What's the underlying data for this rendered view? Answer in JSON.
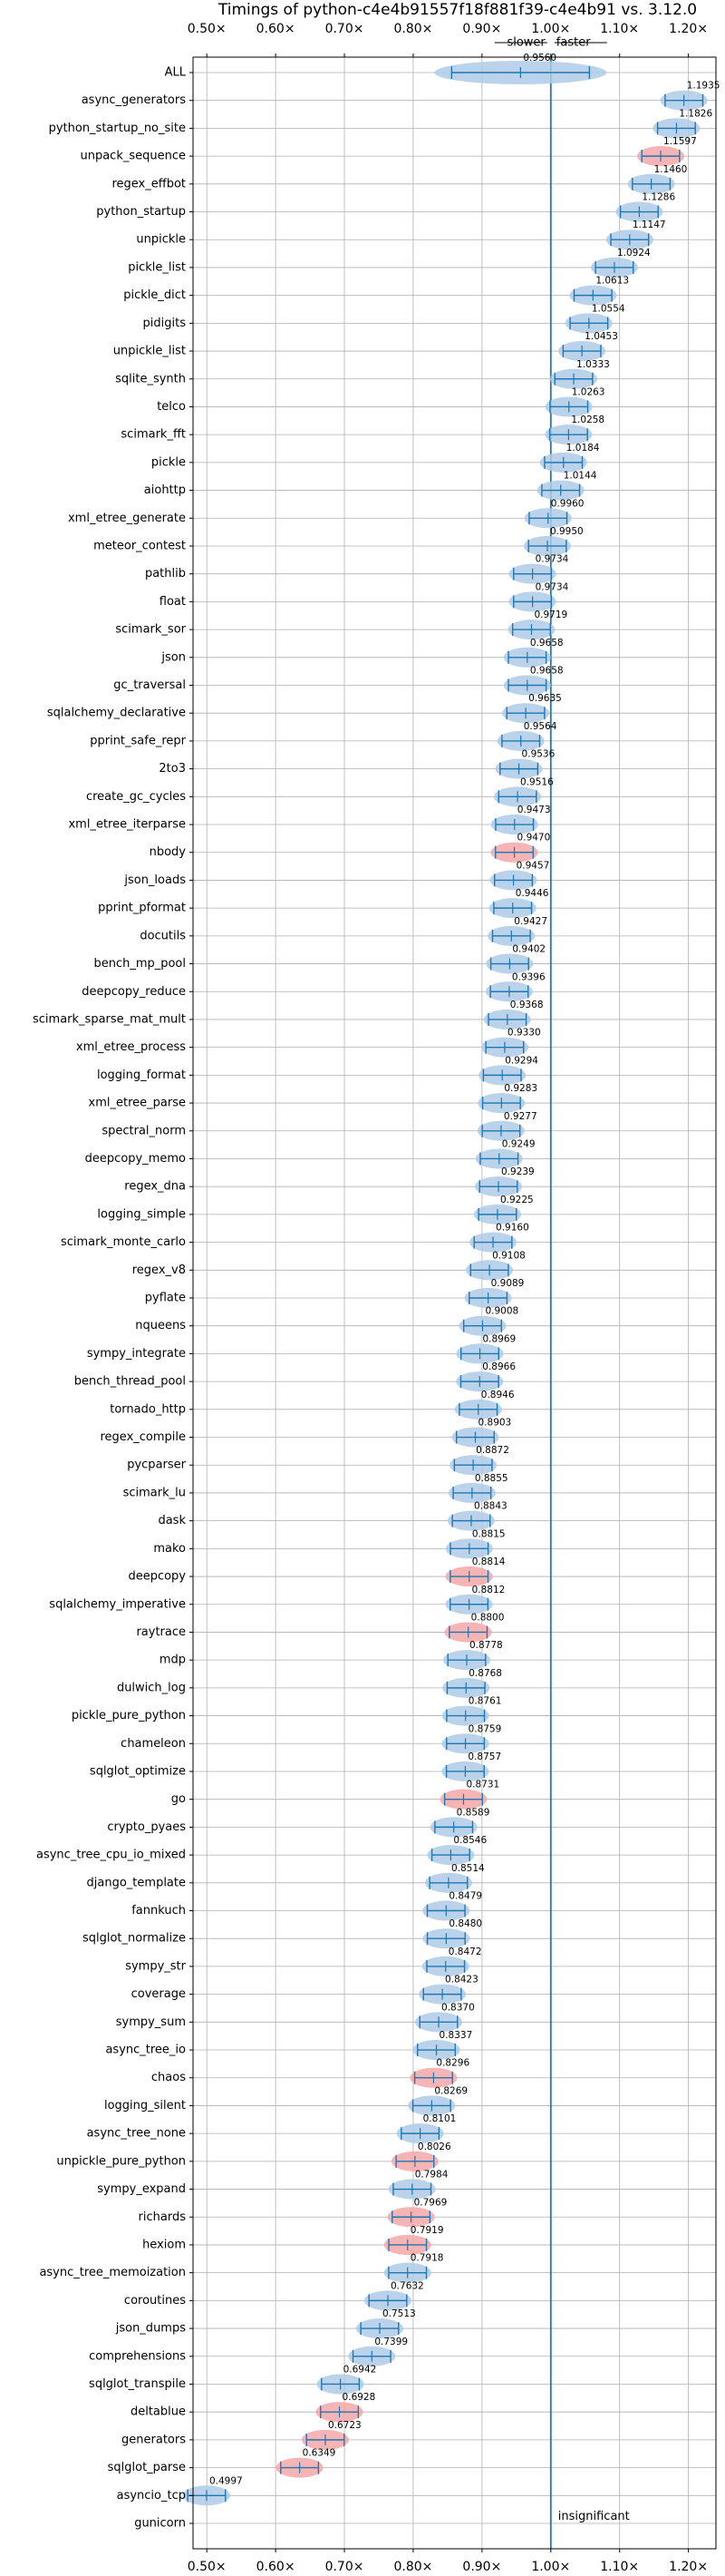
{
  "chart_data": {
    "type": "violin",
    "title": "Timings of python-c4e4b91557f18f881f39-c4e4b91 vs. 3.12.0",
    "direction_labels": {
      "slower": "slower",
      "faster": "faster"
    },
    "annotation": "insignificant",
    "xlim": [
      0.48,
      1.24
    ],
    "x_ticks": [
      0.5,
      0.6,
      0.7,
      0.8,
      0.9,
      1.0,
      1.1,
      1.2
    ],
    "x_tick_labels": [
      "0.50×",
      "0.60×",
      "0.70×",
      "0.80×",
      "0.90×",
      "1.00×",
      "1.10×",
      "1.20×"
    ],
    "reference_line": 1.0,
    "grid": true,
    "colors": {
      "default": "#aecbe6",
      "highlight": "#f4a7a7",
      "line": "#1f77b4"
    },
    "benchmarks": [
      {
        "name": "ALL",
        "value": 0.956
      },
      {
        "name": "async_generators",
        "value": 1.1935
      },
      {
        "name": "python_startup_no_site",
        "value": 1.1826
      },
      {
        "name": "unpack_sequence",
        "value": 1.1597,
        "highlight": true
      },
      {
        "name": "regex_effbot",
        "value": 1.146
      },
      {
        "name": "python_startup",
        "value": 1.1286
      },
      {
        "name": "unpickle",
        "value": 1.1147
      },
      {
        "name": "pickle_list",
        "value": 1.0924
      },
      {
        "name": "pickle_dict",
        "value": 1.0613
      },
      {
        "name": "pidigits",
        "value": 1.0554
      },
      {
        "name": "unpickle_list",
        "value": 1.0453
      },
      {
        "name": "sqlite_synth",
        "value": 1.0333
      },
      {
        "name": "telco",
        "value": 1.0263
      },
      {
        "name": "scimark_fft",
        "value": 1.0258
      },
      {
        "name": "pickle",
        "value": 1.0184
      },
      {
        "name": "aiohttp",
        "value": 1.0144
      },
      {
        "name": "xml_etree_generate",
        "value": 0.996
      },
      {
        "name": "meteor_contest",
        "value": 0.995
      },
      {
        "name": "pathlib",
        "value": 0.9734
      },
      {
        "name": "float",
        "value": 0.9734
      },
      {
        "name": "scimark_sor",
        "value": 0.9719
      },
      {
        "name": "json",
        "value": 0.9658
      },
      {
        "name": "gc_traversal",
        "value": 0.9658
      },
      {
        "name": "sqlalchemy_declarative",
        "value": 0.9635
      },
      {
        "name": "pprint_safe_repr",
        "value": 0.9564
      },
      {
        "name": "2to3",
        "value": 0.9536
      },
      {
        "name": "create_gc_cycles",
        "value": 0.9516
      },
      {
        "name": "xml_etree_iterparse",
        "value": 0.9473
      },
      {
        "name": "nbody",
        "value": 0.947,
        "highlight": true
      },
      {
        "name": "json_loads",
        "value": 0.9457
      },
      {
        "name": "pprint_pformat",
        "value": 0.9446
      },
      {
        "name": "docutils",
        "value": 0.9427
      },
      {
        "name": "bench_mp_pool",
        "value": 0.9402
      },
      {
        "name": "deepcopy_reduce",
        "value": 0.9396
      },
      {
        "name": "scimark_sparse_mat_mult",
        "value": 0.9368
      },
      {
        "name": "xml_etree_process",
        "value": 0.933
      },
      {
        "name": "logging_format",
        "value": 0.9294
      },
      {
        "name": "xml_etree_parse",
        "value": 0.9283
      },
      {
        "name": "spectral_norm",
        "value": 0.9277
      },
      {
        "name": "deepcopy_memo",
        "value": 0.9249
      },
      {
        "name": "regex_dna",
        "value": 0.9239
      },
      {
        "name": "logging_simple",
        "value": 0.9225
      },
      {
        "name": "scimark_monte_carlo",
        "value": 0.916
      },
      {
        "name": "regex_v8",
        "value": 0.9108
      },
      {
        "name": "pyflate",
        "value": 0.9089
      },
      {
        "name": "nqueens",
        "value": 0.9008
      },
      {
        "name": "sympy_integrate",
        "value": 0.8969
      },
      {
        "name": "bench_thread_pool",
        "value": 0.8966
      },
      {
        "name": "tornado_http",
        "value": 0.8946
      },
      {
        "name": "regex_compile",
        "value": 0.8903
      },
      {
        "name": "pycparser",
        "value": 0.8872
      },
      {
        "name": "scimark_lu",
        "value": 0.8855
      },
      {
        "name": "dask",
        "value": 0.8843
      },
      {
        "name": "mako",
        "value": 0.8815
      },
      {
        "name": "deepcopy",
        "value": 0.8814,
        "highlight": true
      },
      {
        "name": "sqlalchemy_imperative",
        "value": 0.8812
      },
      {
        "name": "raytrace",
        "value": 0.88,
        "highlight": true
      },
      {
        "name": "mdp",
        "value": 0.8778
      },
      {
        "name": "dulwich_log",
        "value": 0.8768
      },
      {
        "name": "pickle_pure_python",
        "value": 0.8761
      },
      {
        "name": "chameleon",
        "value": 0.8759
      },
      {
        "name": "sqlglot_optimize",
        "value": 0.8757
      },
      {
        "name": "go",
        "value": 0.8731,
        "highlight": true
      },
      {
        "name": "crypto_pyaes",
        "value": 0.8589
      },
      {
        "name": "async_tree_cpu_io_mixed",
        "value": 0.8546
      },
      {
        "name": "django_template",
        "value": 0.8514
      },
      {
        "name": "fannkuch",
        "value": 0.8479
      },
      {
        "name": "sqlglot_normalize",
        "value": 0.848
      },
      {
        "name": "sympy_str",
        "value": 0.8472
      },
      {
        "name": "coverage",
        "value": 0.8423
      },
      {
        "name": "sympy_sum",
        "value": 0.837
      },
      {
        "name": "async_tree_io",
        "value": 0.8337
      },
      {
        "name": "chaos",
        "value": 0.8296,
        "highlight": true
      },
      {
        "name": "logging_silent",
        "value": 0.8269
      },
      {
        "name": "async_tree_none",
        "value": 0.8101
      },
      {
        "name": "unpickle_pure_python",
        "value": 0.8026,
        "highlight": true
      },
      {
        "name": "sympy_expand",
        "value": 0.7984
      },
      {
        "name": "richards",
        "value": 0.7969,
        "highlight": true
      },
      {
        "name": "hexiom",
        "value": 0.7919,
        "highlight": true
      },
      {
        "name": "async_tree_memoization",
        "value": 0.7918
      },
      {
        "name": "coroutines",
        "value": 0.7632
      },
      {
        "name": "json_dumps",
        "value": 0.7513
      },
      {
        "name": "comprehensions",
        "value": 0.7399
      },
      {
        "name": "sqlglot_transpile",
        "value": 0.6942
      },
      {
        "name": "deltablue",
        "value": 0.6928,
        "highlight": true
      },
      {
        "name": "generators",
        "value": 0.6723,
        "highlight": true
      },
      {
        "name": "sqlglot_parse",
        "value": 0.6349,
        "highlight": true
      },
      {
        "name": "asyncio_tcp",
        "value": 0.4997
      },
      {
        "name": "gunicorn"
      }
    ]
  }
}
